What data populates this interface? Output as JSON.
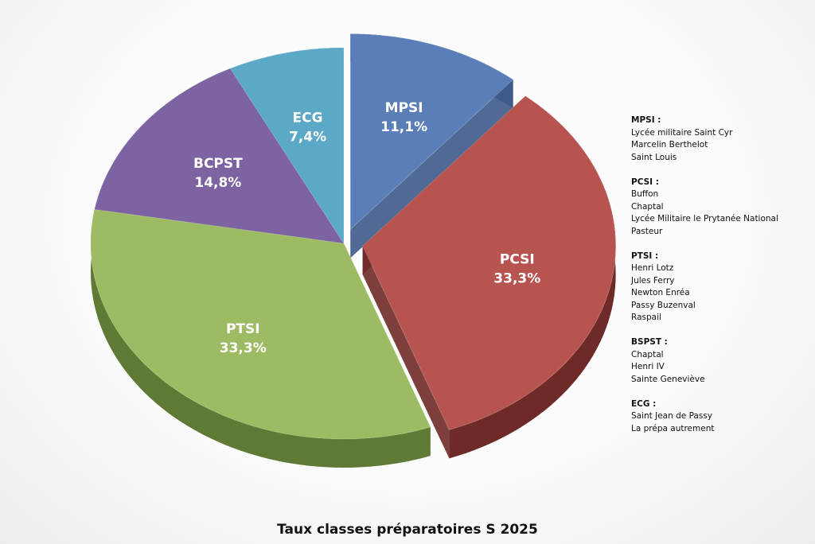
{
  "chart_data": {
    "type": "pie",
    "title": "Taux classes préparatoires S 2025",
    "slices": [
      {
        "label": "MPSI",
        "percent_label": "11,1%",
        "value": 11.1,
        "color": "#5a7fb8",
        "side_color": "#3d5a8a",
        "exploded": true
      },
      {
        "label": "PCSI",
        "percent_label": "33,3%",
        "value": 33.3,
        "color": "#b85450",
        "side_color": "#6e2a27",
        "exploded": true
      },
      {
        "label": "PTSI",
        "percent_label": "33,3%",
        "value": 33.3,
        "color": "#9dbb62",
        "side_color": "#5f7a34",
        "exploded": false
      },
      {
        "label": "BCPST",
        "percent_label": "14,8%",
        "value": 14.8,
        "color": "#7d63a2",
        "side_color": "#3f2f59",
        "exploded": false
      },
      {
        "label": "ECG",
        "percent_label": "7,4%",
        "value": 7.4,
        "color": "#5ba9c6",
        "side_color": "#2f6e86",
        "exploded": false
      }
    ]
  },
  "legend": [
    {
      "heading": "MPSI :",
      "items": [
        "Lycée militaire Saint Cyr",
        "Marcelin Berthelot",
        "Saint Louis"
      ]
    },
    {
      "heading": "PCSI :",
      "items": [
        "Buffon",
        "Chaptal",
        "Lycée Militaire le Prytanée National",
        "Pasteur"
      ]
    },
    {
      "heading": "PTSI :",
      "items": [
        "Henri Lotz",
        "Jules Ferry",
        "Newton Enréa",
        "Passy Buzenval",
        "Raspail"
      ]
    },
    {
      "heading": "BSPST :",
      "items": [
        "Chaptal",
        "Henri IV",
        "Sainte Geneviève"
      ]
    },
    {
      "heading": "ECG :",
      "items": [
        "Saint Jean de Passy",
        "La prépa autrement"
      ]
    }
  ]
}
